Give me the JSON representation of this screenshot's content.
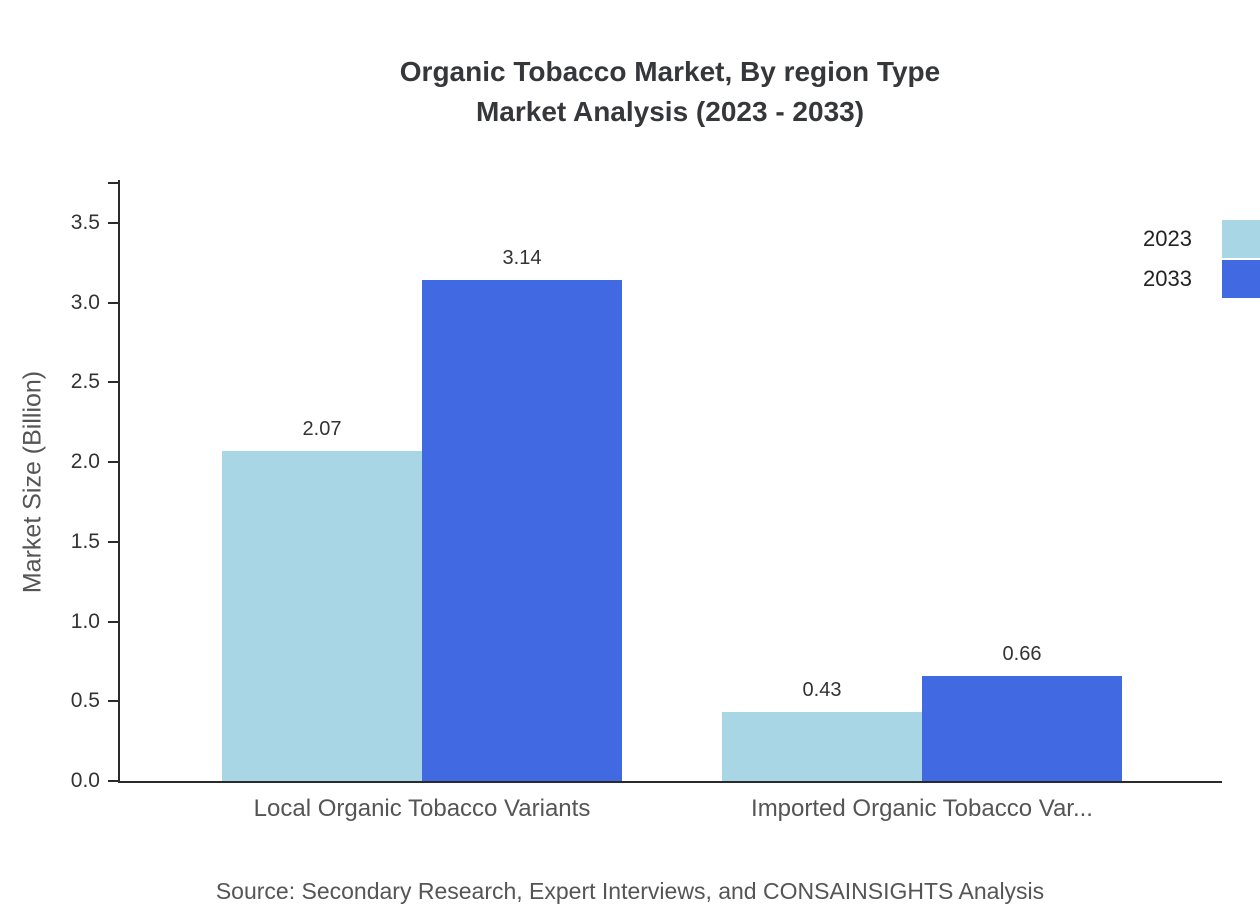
{
  "title_line1": "Organic Tobacco Market, By region Type",
  "title_line2": "Market Analysis (2023 - 2033)",
  "source": "Source: Secondary Research, Expert Interviews, and CONSAINSIGHTS Analysis",
  "chart_data": {
    "type": "bar",
    "title": "Organic Tobacco Market, By region Type Market Analysis (2023 - 2033)",
    "categories": [
      "Local Organic Tobacco Variants",
      "Imported Organic Tobacco Var..."
    ],
    "series": [
      {
        "name": "2023",
        "color": "#A9D6E5",
        "values": [
          2.07,
          0.43
        ]
      },
      {
        "name": "2033",
        "color": "#4169E1",
        "values": [
          3.14,
          0.66
        ]
      }
    ],
    "xlabel": "",
    "ylabel": "Market Size (Billion)",
    "ylim": [
      0,
      3.77
    ],
    "yticks": [
      0.0,
      0.5,
      1.0,
      1.5,
      2.0,
      2.5,
      3.0,
      3.5
    ],
    "grid": false,
    "legend_position": "top-right"
  }
}
